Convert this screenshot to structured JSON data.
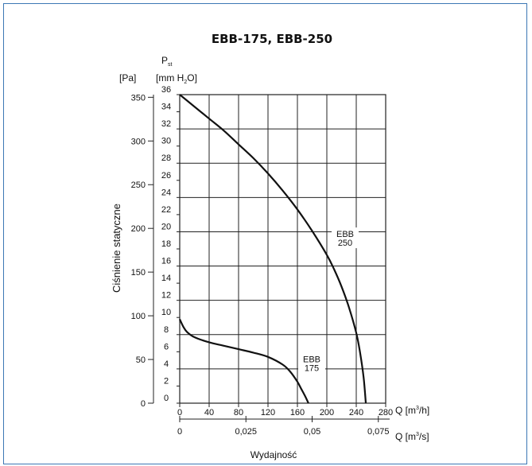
{
  "chart_data": {
    "type": "line",
    "title": "EBB-175, EBB-250",
    "ylabel": "Ciśnienie statyczne",
    "xlabel": "Wydajność",
    "y_left_unit": "[Pa]",
    "y_right_symbol": "P",
    "y_right_symbol_sub": "st",
    "y_right_unit_pre": "[mm H",
    "y_right_unit_sub": "2",
    "y_right_unit_post": "O]",
    "x_top_label_pre": "Q [m",
    "x_top_label_sup": "3",
    "x_top_label_post": "/h]",
    "x_bottom_label_pre": "Q [m",
    "x_bottom_label_sup": "3",
    "x_bottom_label_post": "/s]",
    "xlim": [
      0,
      280
    ],
    "ylim": [
      0,
      36
    ],
    "grid": true,
    "x_ticks": [
      "0",
      "40",
      "80",
      "120",
      "160",
      "200",
      "240",
      "280"
    ],
    "x_tick_values": [
      0,
      40,
      80,
      120,
      160,
      200,
      240,
      280
    ],
    "x2_ticks": [
      "0",
      "0,025",
      "0,05",
      "0,075"
    ],
    "x2_tick_values": [
      0,
      0.025,
      0.05,
      0.075
    ],
    "y_ticks_mm": [
      "0",
      "2",
      "4",
      "6",
      "8",
      "10",
      "12",
      "14",
      "16",
      "18",
      "20",
      "22",
      "24",
      "26",
      "28",
      "30",
      "32",
      "34",
      "36"
    ],
    "y_ticks_pa": [
      "0",
      "50",
      "100",
      "150",
      "200",
      "250",
      "300",
      "350"
    ],
    "y_tick_values_pa": [
      0,
      50,
      100,
      150,
      200,
      250,
      300,
      350
    ],
    "series": [
      {
        "name_line1": "EBB",
        "name_line2": "250",
        "x": [
          0,
          20,
          40,
          60,
          80,
          100,
          120,
          140,
          160,
          180,
          200,
          210,
          220,
          230,
          240,
          245,
          250,
          253
        ],
        "y": [
          36,
          34.6,
          33.2,
          31.8,
          30.2,
          28.6,
          26.8,
          24.8,
          22.6,
          20.1,
          17.3,
          15.6,
          13.6,
          11.2,
          8.2,
          6.0,
          3.0,
          0
        ]
      },
      {
        "name_line1": "EBB",
        "name_line2": "175",
        "x": [
          0,
          5,
          10,
          20,
          40,
          60,
          80,
          100,
          120,
          140,
          150,
          160,
          165,
          170,
          175
        ],
        "y": [
          9.8,
          8.9,
          8.3,
          7.7,
          7.1,
          6.7,
          6.3,
          5.9,
          5.4,
          4.5,
          3.7,
          2.5,
          1.7,
          0.9,
          0
        ]
      }
    ]
  }
}
